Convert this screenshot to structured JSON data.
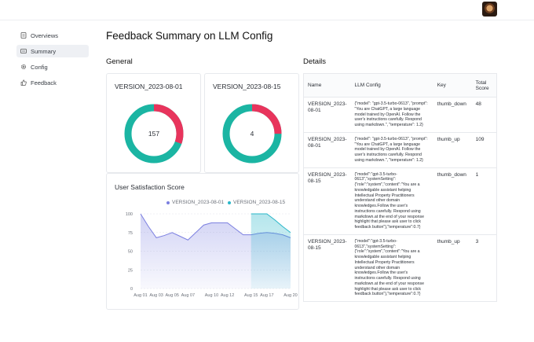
{
  "sidebar": {
    "items": [
      {
        "label": "Overviews",
        "icon": "document-icon"
      },
      {
        "label": "Summary",
        "icon": "summary-icon"
      },
      {
        "label": "Config",
        "icon": "gear-icon"
      },
      {
        "label": "Feedback",
        "icon": "thumbs-up-icon"
      }
    ],
    "active": "Summary"
  },
  "page": {
    "title": "Feedback Summary on LLM Config"
  },
  "general": {
    "title": "General",
    "donuts": [
      {
        "label": "VERSION_2023-08-01",
        "center": "157",
        "thumb_down": 48,
        "thumb_up": 109
      },
      {
        "label": "VERSION_2023-08-15",
        "center": "4",
        "thumb_down": 1,
        "thumb_up": 3
      }
    ],
    "colors": {
      "thumb_down": "#e8345c",
      "thumb_up": "#1bb5a3"
    }
  },
  "satisfaction": {
    "title": "User Satisfaction Score",
    "legend": [
      "VERSION_2023-08-01",
      "VERSION_2023-08-15"
    ],
    "colors": [
      "#7b7fe0",
      "#2ab7c9"
    ]
  },
  "chart_data": {
    "type": "area",
    "title": "User Satisfaction Score",
    "x": [
      "Aug 01",
      "Aug 02",
      "Aug 03",
      "Aug 04",
      "Aug 05",
      "Aug 06",
      "Aug 07",
      "Aug 08",
      "Aug 09",
      "Aug 10",
      "Aug 11",
      "Aug 12",
      "Aug 13",
      "Aug 14",
      "Aug 15",
      "Aug 16",
      "Aug 17",
      "Aug 18",
      "Aug 19",
      "Aug 20"
    ],
    "x_tick_labels": [
      "Aug 01",
      "Aug 03",
      "Aug 05",
      "Aug 07",
      "Aug 10",
      "Aug 12",
      "Aug 15",
      "Aug 17",
      "Aug 20"
    ],
    "series": [
      {
        "name": "VERSION_2023-08-01",
        "values": [
          100,
          83,
          68,
          71,
          75,
          70,
          65,
          75,
          85,
          88,
          88,
          88,
          80,
          72,
          72,
          74,
          75,
          74,
          72,
          68
        ]
      },
      {
        "name": "VERSION_2023-08-15",
        "values": [
          null,
          null,
          null,
          null,
          null,
          null,
          null,
          null,
          null,
          null,
          null,
          null,
          null,
          null,
          100,
          100,
          100,
          92,
          83,
          75
        ]
      }
    ],
    "ylim": [
      0,
      100
    ],
    "y_ticks": [
      0,
      25,
      50,
      75,
      100
    ],
    "grid": true,
    "legend_position": "top-right"
  },
  "details": {
    "title": "Details",
    "columns": [
      "Name",
      "LLM Config",
      "Key",
      "Total Score"
    ],
    "rows": [
      {
        "name": "VERSION_2023-08-01",
        "config": "{\"model\": \"gpt-3.5-turbo-0613\", \"prompt\": \"You are ChatGPT, a large language model trained by OpenAI. Follow the user's instructions carefully. Respond using markdown.\", \"temperature\": 1.2}",
        "key": "thumb_down",
        "score": "48"
      },
      {
        "name": "VERSION_2023-08-01",
        "config": "{\"model\": \"gpt-3.5-turbo-0613\", \"prompt\": \"You are ChatGPT, a large language model trained by OpenAI. Follow the user's instructions carefully. Respond using markdown.\", \"temperature\": 1.2}",
        "key": "thumb_up",
        "score": "109"
      },
      {
        "name": "VERSION_2023-08-15",
        "config": "{\"model\":\"gpt-3.5-turbo-0613\",\"systemSetting\":{\"role\":\"system\",\"content\":\"You are a knowledgable assistant helping Intellectual Property Practitioners understand other domain knowledges.Follow the user's instructions carefully. Respond using markdown.at the end of your response highlight that please ask user to click feedback button\"},\"temperature\":0.7}",
        "key": "thumb_down",
        "score": "1"
      },
      {
        "name": "VERSION_2023-08-15",
        "config": "{\"model\":\"gpt-3.5-turbo-0613\",\"systemSetting\":{\"role\":\"system\",\"content\":\"You are a knowledgable assistant helping Intellectual Property Practitioners understand other domain knowledges.Follow the user's instructions carefully. Respond using markdown.at the end of your response highlight that please ask user to click feedback button\"},\"temperature\":0.7}",
        "key": "thumb_up",
        "score": "3"
      }
    ]
  }
}
